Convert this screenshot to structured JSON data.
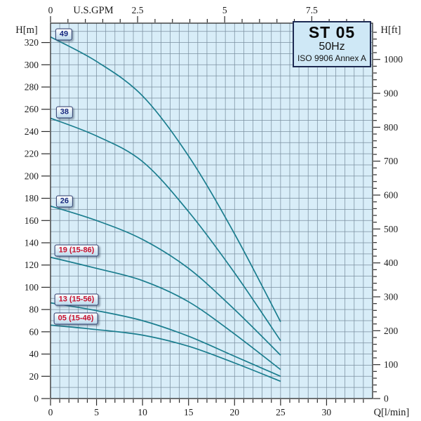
{
  "colors": {
    "plot_bg": "#d8edf8",
    "grid": "#7b90a0",
    "frame": "#2b2b2b",
    "curve": "#1a7d8e",
    "tick": "#2b2b2b",
    "axis_text": "#1c1c1c",
    "title_box_bg": "#cfe8f6",
    "title_box_border": "#1e2a52",
    "label_navy": "#14277e",
    "label_red": "#c8102e"
  },
  "chart_data": {
    "type": "line",
    "title": "ST 05",
    "subtitle": "50Hz",
    "note": "ISO 9906 Annex A",
    "x": [
      0,
      5,
      10,
      15,
      20,
      25
    ],
    "series": [
      {
        "label": "49",
        "style": "navy",
        "label_q": 1.45,
        "label_h": 327,
        "values": [
          325,
          303,
          272,
          218,
          148,
          69
        ]
      },
      {
        "label": "38",
        "style": "navy",
        "label_q": 1.52,
        "label_h": 257,
        "values": [
          252,
          236,
          213,
          168,
          113,
          52
        ]
      },
      {
        "label": "26",
        "style": "navy",
        "label_q": 1.52,
        "label_h": 177,
        "values": [
          173,
          160,
          143,
          117,
          80,
          39
        ]
      },
      {
        "label": "19 (15-86)",
        "style": "red",
        "label_q": 2.82,
        "label_h": 133,
        "values": [
          127,
          117,
          106,
          87,
          58,
          26
        ]
      },
      {
        "label": "13 (15-56)",
        "style": "red",
        "label_q": 2.82,
        "label_h": 89,
        "values": [
          86,
          79,
          70,
          56,
          38,
          20
        ]
      },
      {
        "label": "05 (15-46)",
        "style": "red",
        "label_q": 2.75,
        "label_h": 72,
        "values": [
          66,
          62,
          57,
          47,
          32,
          15.5
        ]
      }
    ],
    "axes": {
      "left": {
        "label": "H[m]",
        "ticks": [
          0,
          20,
          40,
          60,
          80,
          100,
          120,
          140,
          160,
          180,
          200,
          220,
          240,
          260,
          280,
          300,
          320
        ]
      },
      "right": {
        "label": "H[ft]",
        "ticks": [
          0,
          100,
          200,
          300,
          400,
          500,
          600,
          700,
          800,
          900,
          1000
        ]
      },
      "bottom": {
        "label": "Q[l/min]",
        "ticks": [
          0,
          5,
          10,
          15,
          20,
          25,
          30
        ]
      },
      "top": {
        "label": "U.S.GPM",
        "ticks": [
          0,
          2.5,
          5,
          7.5
        ]
      }
    },
    "xlim": [
      0,
      35
    ],
    "ylim": [
      0,
      337.4
    ],
    "grid": "on",
    "legend_position": "none"
  }
}
